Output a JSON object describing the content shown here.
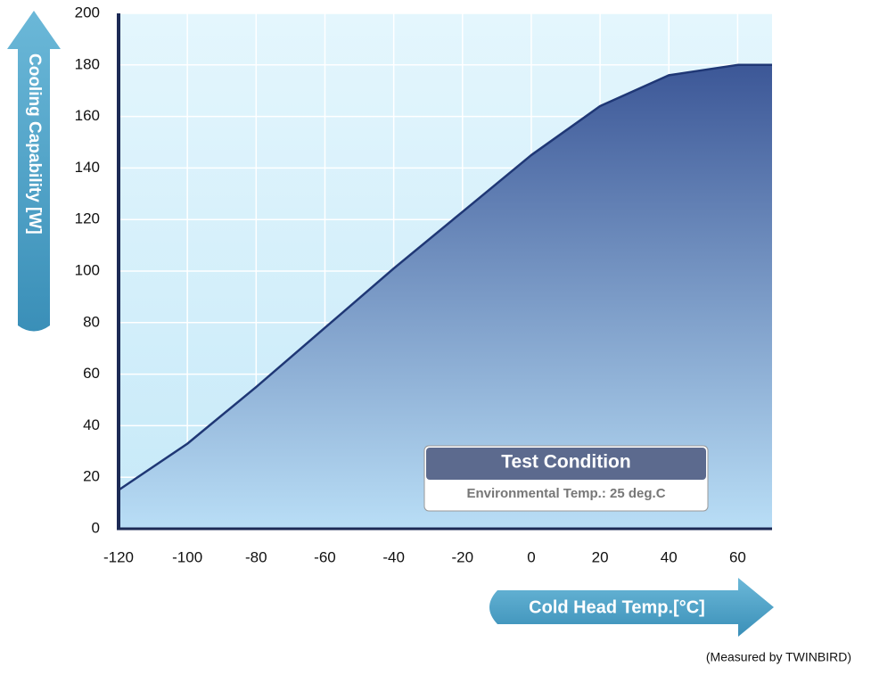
{
  "chart_data": {
    "type": "area",
    "x_label": "Cold Head Temp.[°C]",
    "y_label": "Cooling Capability [W]",
    "x": [
      -120,
      -100,
      -80,
      -60,
      -40,
      -20,
      0,
      20,
      40,
      60,
      70
    ],
    "values": [
      15,
      33,
      55,
      78,
      101,
      123,
      145,
      164,
      176,
      180,
      180
    ],
    "color": "#1f3775",
    "xlim": [
      -120,
      70
    ],
    "xticks": [
      -120,
      -100,
      -80,
      -60,
      -40,
      -20,
      0,
      20,
      40,
      60
    ],
    "ylim": [
      0,
      200
    ],
    "yticks": [
      0,
      20,
      40,
      60,
      80,
      100,
      120,
      140,
      160,
      180,
      200
    ],
    "grid": true,
    "annotation": {
      "title": "Test Condition",
      "text": "Environmental Temp.: 25 deg.C"
    },
    "note": "(Measured by TWINBIRD)"
  }
}
